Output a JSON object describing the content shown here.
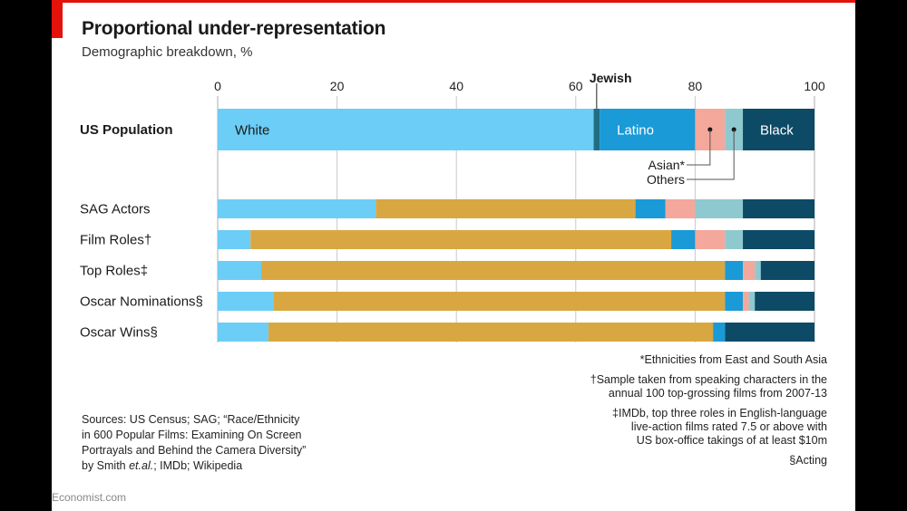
{
  "colors": {
    "White": "#6ccdf6",
    "Jewish": "#1f6e86",
    "Latino": "#1a9ad6",
    "Asian": "#f4a79b",
    "Others": "#8ec9cf",
    "Black": "#0d4a66",
    "Overlap": "#d9a742",
    "grid": "#c9c9c9",
    "brand": "#e3120b"
  },
  "header": {
    "title": "Proportional under-representation",
    "subtitle": "Demographic breakdown, %"
  },
  "chart_data": {
    "type": "bar",
    "orientation": "horizontal-stacked",
    "title": "Proportional under-representation",
    "subtitle": "Demographic breakdown, %",
    "xlim": [
      0,
      100
    ],
    "xticks": [
      0,
      20,
      40,
      60,
      80,
      100
    ],
    "grid": true,
    "series_names": [
      "White",
      "Jewish",
      "Latino",
      "Asian",
      "Others",
      "Black"
    ],
    "categories": [
      "US Population",
      "SAG Actors",
      "Film Roles†",
      "Top Roles‡",
      "Oscar Nominations§",
      "Oscar Wins§"
    ],
    "rows": [
      {
        "label": "US Population",
        "segments": [
          {
            "name": "White",
            "value": 63,
            "text": "White"
          },
          {
            "name": "Jewish",
            "value": 1
          },
          {
            "name": "Latino",
            "value": 16,
            "text": "Latino"
          },
          {
            "name": "Asian",
            "value": 5
          },
          {
            "name": "Others",
            "value": 3
          },
          {
            "name": "Black",
            "value": 12,
            "text": "Black"
          }
        ]
      },
      {
        "label": "SAG Actors",
        "segments": [
          {
            "name": "White",
            "value": 26.5
          },
          {
            "name": "Overlap",
            "value": 43.5
          },
          {
            "name": "Latino",
            "value": 5
          },
          {
            "name": "Asian",
            "value": 5
          },
          {
            "name": "Others",
            "value": 8
          },
          {
            "name": "Black",
            "value": 12
          }
        ]
      },
      {
        "label": "Film Roles†",
        "segments": [
          {
            "name": "White",
            "value": 5.5
          },
          {
            "name": "Overlap",
            "value": 70.5
          },
          {
            "name": "Latino",
            "value": 4
          },
          {
            "name": "Asian",
            "value": 5
          },
          {
            "name": "Others",
            "value": 3
          },
          {
            "name": "Black",
            "value": 12
          }
        ]
      },
      {
        "label": "Top Roles‡",
        "segments": [
          {
            "name": "White",
            "value": 7.3
          },
          {
            "name": "Overlap",
            "value": 77.7
          },
          {
            "name": "Latino",
            "value": 3
          },
          {
            "name": "Asian",
            "value": 2
          },
          {
            "name": "Others",
            "value": 1
          },
          {
            "name": "Black",
            "value": 9
          }
        ]
      },
      {
        "label": "Oscar Nominations§",
        "segments": [
          {
            "name": "White",
            "value": 9.3
          },
          {
            "name": "Overlap",
            "value": 75.7
          },
          {
            "name": "Latino",
            "value": 3
          },
          {
            "name": "Asian",
            "value": 1
          },
          {
            "name": "Others",
            "value": 1
          },
          {
            "name": "Black",
            "value": 10
          }
        ]
      },
      {
        "label": "Oscar Wins§",
        "segments": [
          {
            "name": "White",
            "value": 8.5
          },
          {
            "name": "Overlap",
            "value": 74.5
          },
          {
            "name": "Latino",
            "value": 2
          },
          {
            "name": "Black",
            "value": 15
          }
        ]
      }
    ],
    "annotations": {
      "jewish_label": "Jewish",
      "asian_label": "Asian*",
      "others_label": "Others"
    }
  },
  "footnotes": {
    "asterisk": "*Ethnicities from East and South Asia",
    "dagger_line1": "†Sample taken from speaking characters in the",
    "dagger_line2": "annual 100 top-grossing films from 2007-13",
    "ddagger_line1": "‡IMDb, top three roles in English-language",
    "ddagger_line2": "live-action films rated 7.5 or above with",
    "ddagger_line3": "US box-office takings of at least $10m",
    "section": "§Acting"
  },
  "sources": {
    "line1": "Sources: US Census; SAG; “Race/Ethnicity",
    "line2": "in 600 Popular Films: Examining On Screen",
    "line3": "Portrayals and Behind the Camera Diversity”",
    "line4_pre": "by Smith ",
    "line4_em": "et.al.",
    "line4_post": "; IMDb; Wikipedia"
  },
  "credit": "Economist.com"
}
